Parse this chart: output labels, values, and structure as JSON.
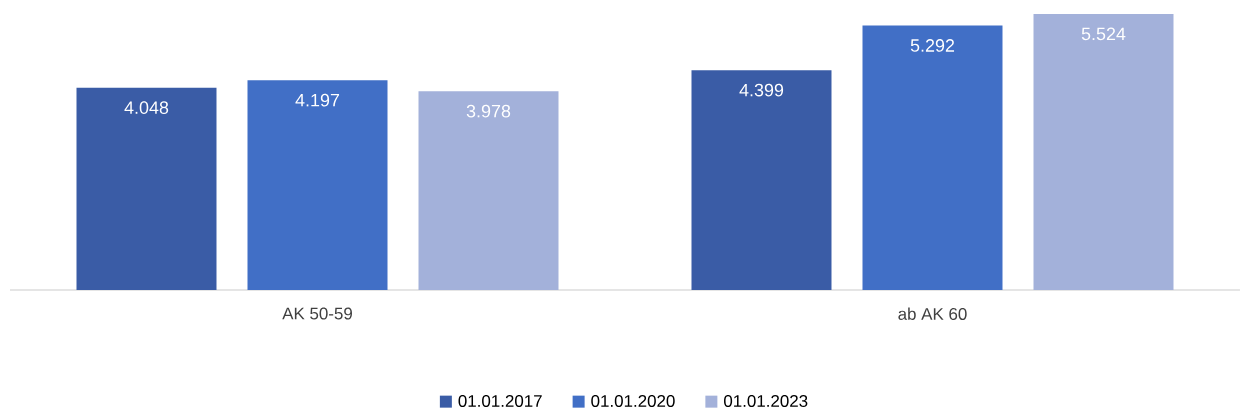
{
  "chart_data": {
    "type": "bar",
    "categories": [
      "AK 50-59",
      "ab AK 60"
    ],
    "series": [
      {
        "name": "01.01.2017",
        "color": "#3a5ca6",
        "values": [
          4.048,
          4.399
        ]
      },
      {
        "name": "01.01.2020",
        "color": "#416fc6",
        "values": [
          4.197,
          5.292
        ]
      },
      {
        "name": "01.01.2023",
        "color": "#a3b1da",
        "values": [
          3.978,
          5.524
        ]
      }
    ],
    "data_labels": true,
    "legend": "bottom"
  }
}
